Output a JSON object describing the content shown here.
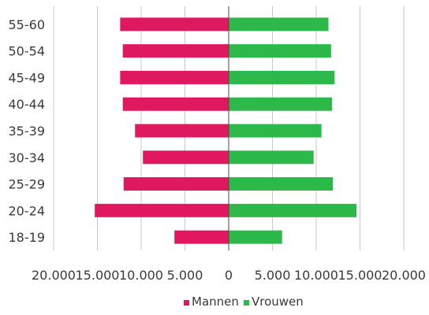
{
  "chart_data": {
    "type": "bar",
    "orientation": "horizontal",
    "layout": "population-pyramid",
    "categories": [
      "55-60",
      "50-54",
      "45-49",
      "40-44",
      "35-39",
      "30-34",
      "25-29",
      "20-24",
      "18-19"
    ],
    "series": [
      {
        "name": "Mannen",
        "color": "#e0185e",
        "side": "left",
        "values": [
          12400,
          12100,
          12400,
          12100,
          10700,
          9800,
          12000,
          15300,
          6200
        ]
      },
      {
        "name": "Vrouwen",
        "color": "#2db84a",
        "side": "right",
        "values": [
          11400,
          11700,
          12100,
          11800,
          10600,
          9700,
          11900,
          14600,
          6100
        ]
      }
    ],
    "x_ticks": [
      {
        "value": -20000,
        "label": "20.000"
      },
      {
        "value": -15000,
        "label": "15.000"
      },
      {
        "value": -10000,
        "label": "10.000"
      },
      {
        "value": -5000,
        "label": "5.000"
      },
      {
        "value": 0,
        "label": "0"
      },
      {
        "value": 5000,
        "label": "5.000"
      },
      {
        "value": 10000,
        "label": "10.000"
      },
      {
        "value": 15000,
        "label": "15.000"
      },
      {
        "value": 20000,
        "label": "20.000"
      }
    ],
    "xlim": [
      -20000,
      20000
    ],
    "title": "",
    "xlabel": "",
    "ylabel": "",
    "grid": "vertical",
    "grid_color": "#c8c8c8",
    "axis_color": "#4a4a4a",
    "legend_position": "bottom-center"
  }
}
